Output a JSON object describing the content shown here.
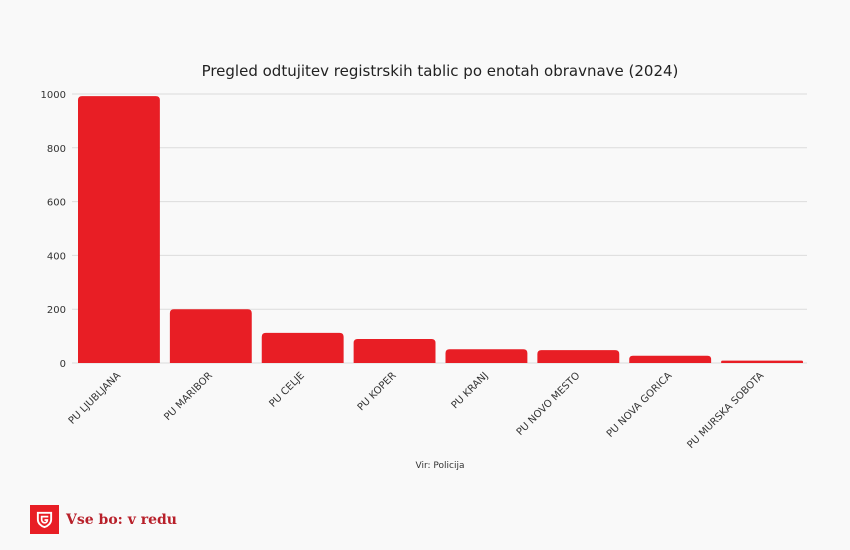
{
  "chart_data": {
    "type": "bar",
    "title": "Pregled odtujitev registrskih tablic po enotah obravnave (2024)",
    "xlabel": "",
    "ylabel": "",
    "ylim": [
      0,
      1000
    ],
    "yticks": [
      0,
      200,
      400,
      600,
      800,
      1000
    ],
    "grid": true,
    "categories": [
      "PU LJUBLJANA",
      "PU MARIBOR",
      "PU CELJE",
      "PU KOPER",
      "PU KRANJ",
      "PU NOVO MESTO",
      "PU NOVA GORICA",
      "PU MURSKA SOBOTA"
    ],
    "values": [
      992,
      200,
      112,
      89,
      51,
      48,
      27,
      9
    ],
    "bar_color": "#e81e25",
    "source": "Vir: Policija"
  },
  "brand": {
    "name": "Vse bo: v redu",
    "logo_icon": "shield-g-icon",
    "color": "#e81e25"
  }
}
